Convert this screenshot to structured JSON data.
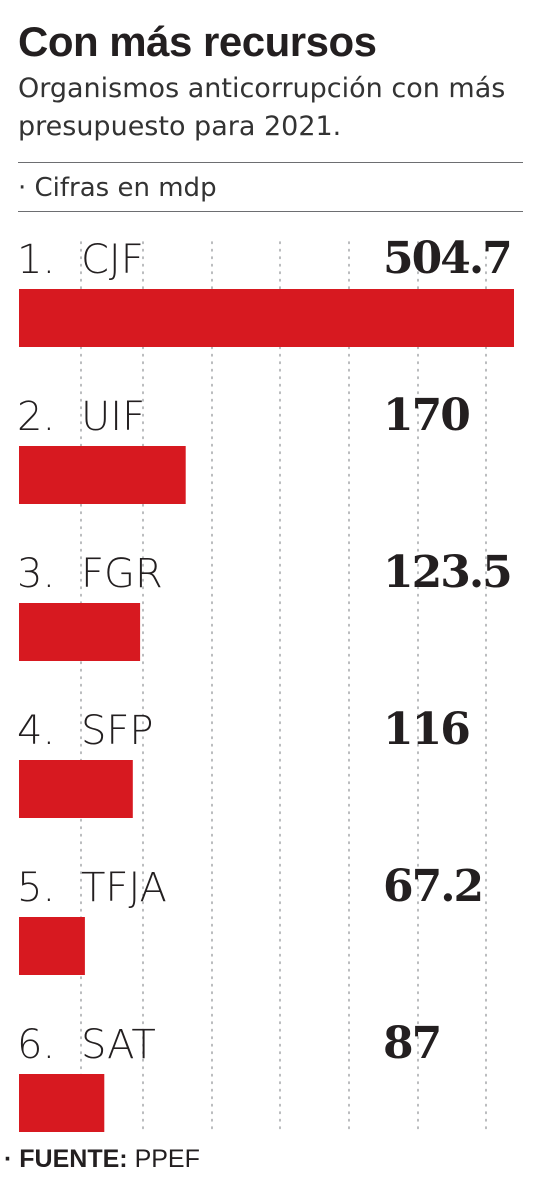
{
  "title": "Con más recursos",
  "subtitle": "Organismos anticorrupción con más presupuesto para 2021.",
  "units": "· Cifras en mdp",
  "source": {
    "label": "· FUENTE:",
    "value": "PPEF"
  },
  "colors": {
    "bar": "#d71920",
    "text": "#231f20",
    "grid": "#9d9fa2"
  },
  "chart_data": {
    "type": "bar",
    "orientation": "horizontal",
    "categories": [
      "1.  CJF",
      "2.  UIF",
      "3.  FGR",
      "4.  SFP",
      "5.  TFJA",
      "6.  SAT"
    ],
    "values": [
      504.7,
      170,
      123.5,
      116,
      67.2,
      87
    ],
    "value_labels": [
      "504.7",
      "170",
      "123.5",
      "116",
      "67.2",
      "87"
    ],
    "xlim": [
      0,
      504.7
    ],
    "grid": true,
    "grid_style": "dotted vertical"
  }
}
